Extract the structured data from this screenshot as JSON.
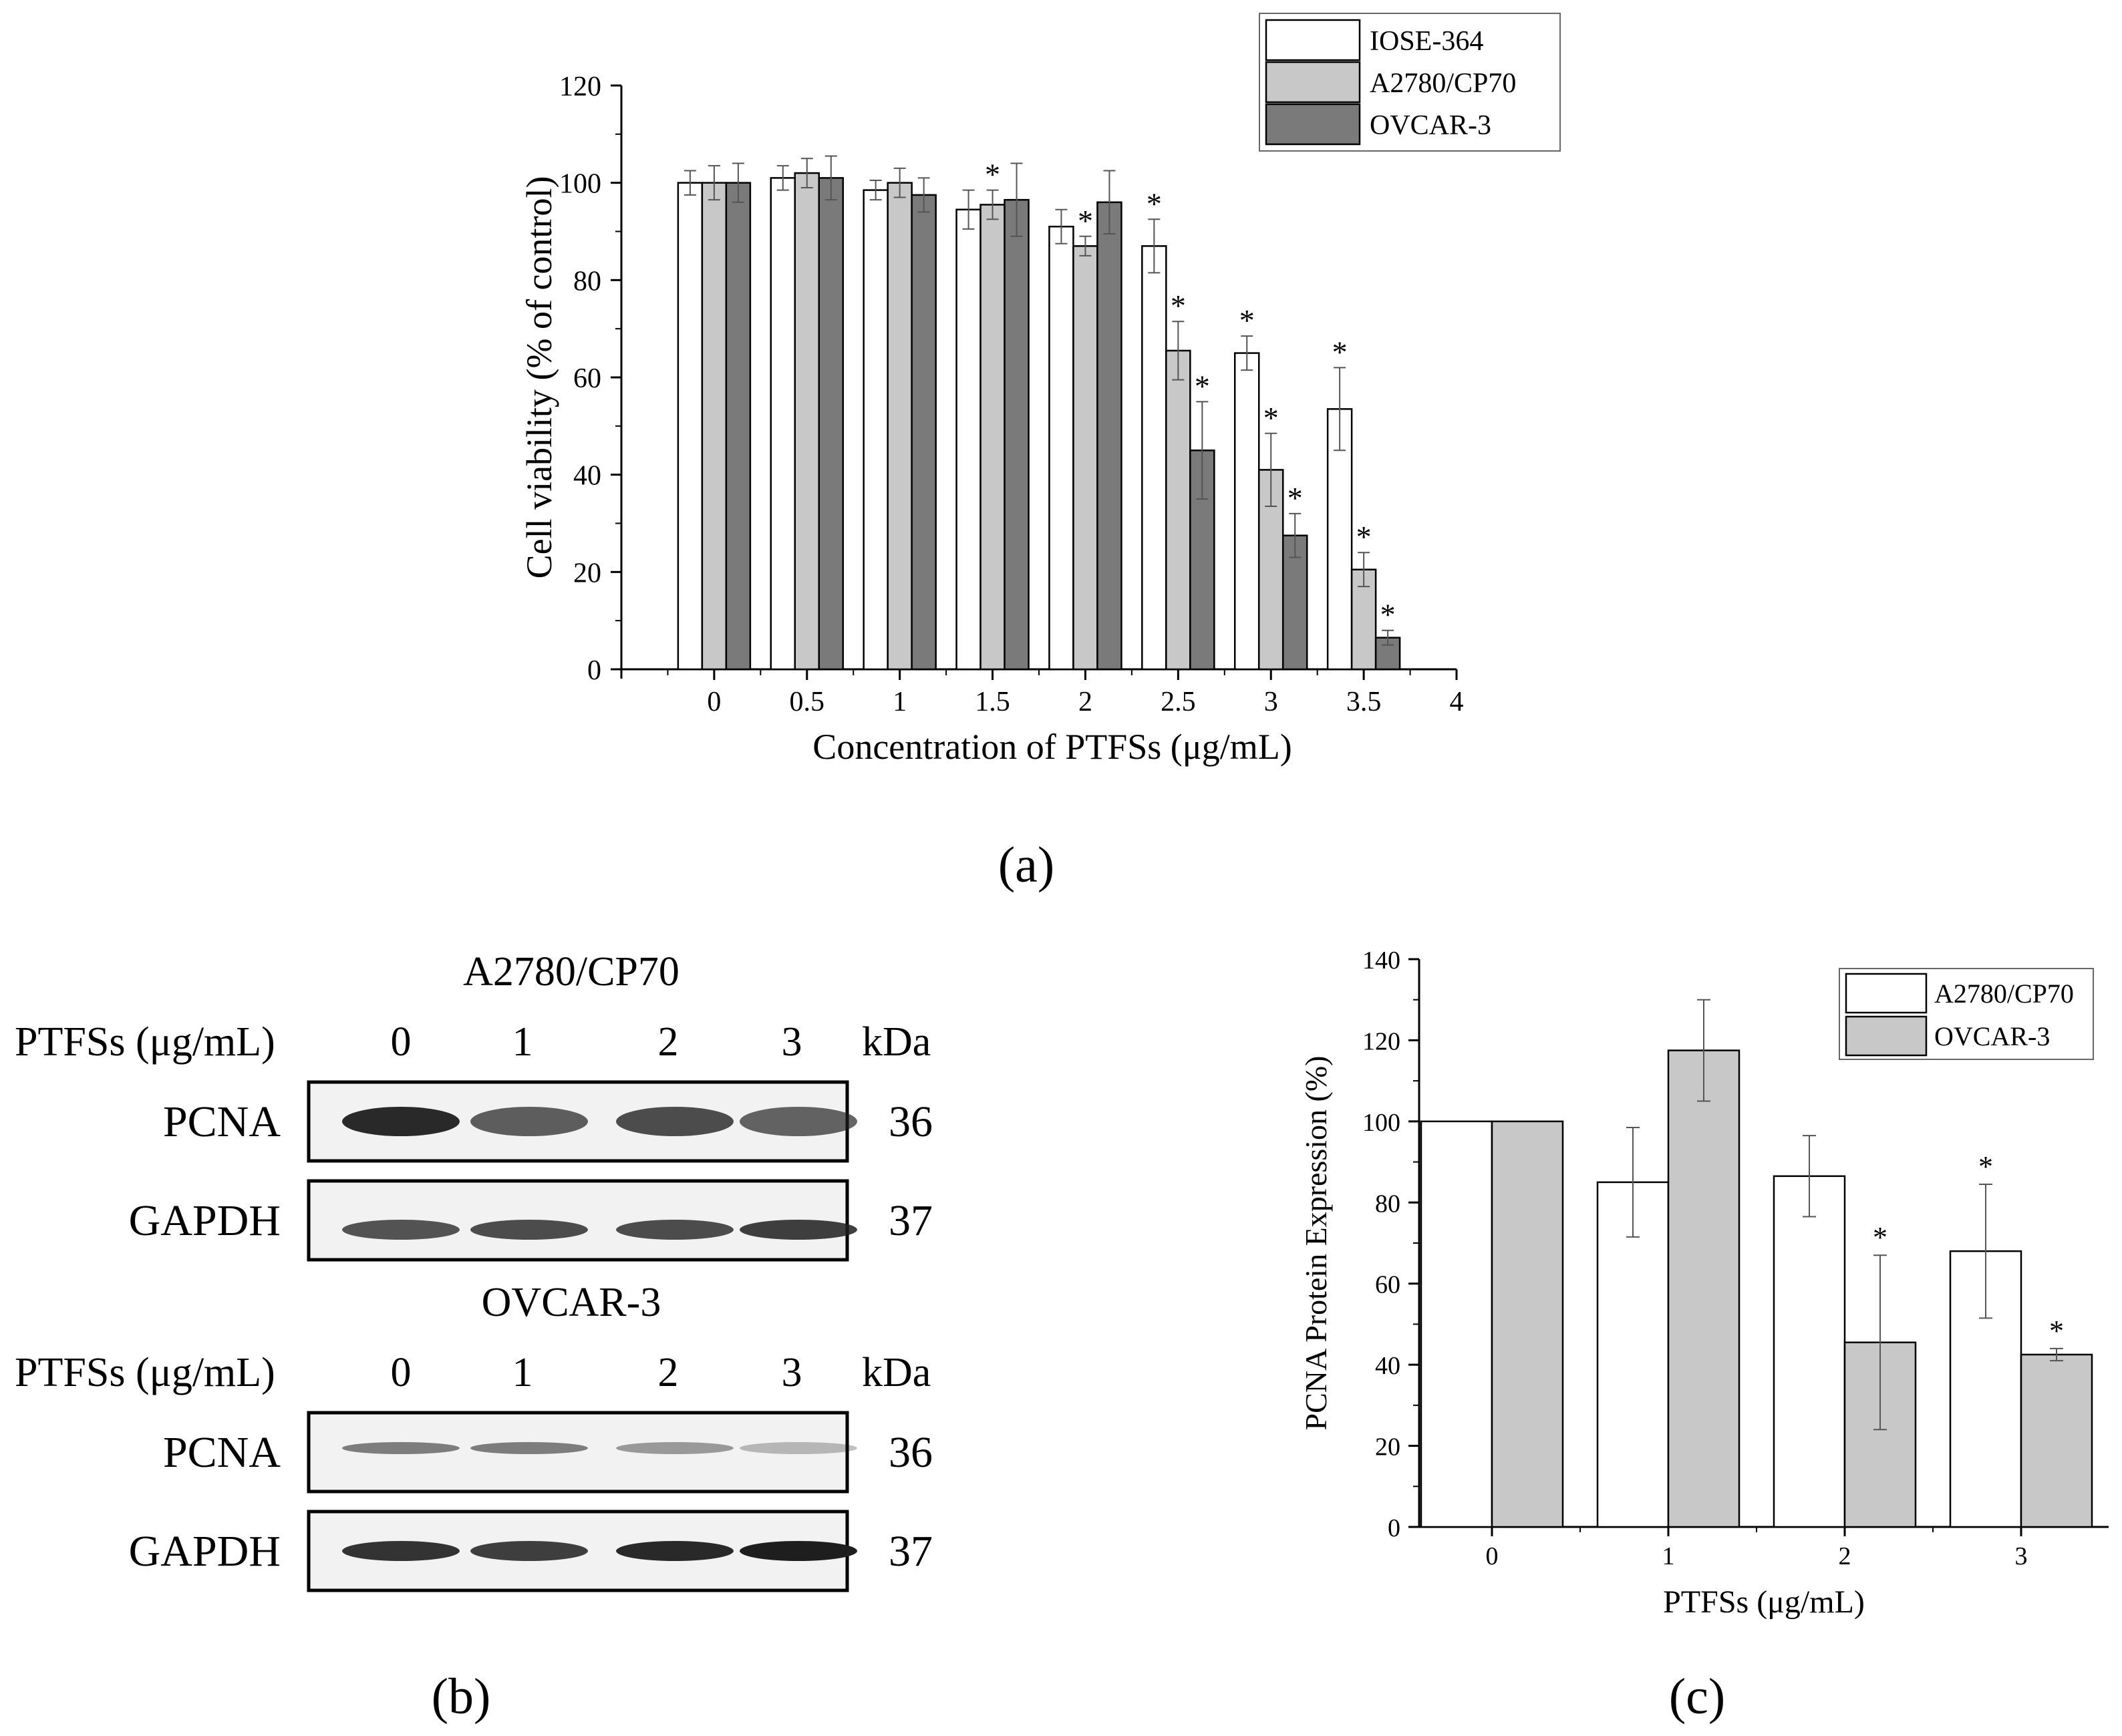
{
  "colors": {
    "iose": "#ffffff",
    "a2780": "#c8c8c8",
    "ovcar": "#7a7a7a",
    "axis": "#000000",
    "band": "#1e1e1e",
    "blot_bg": "#f2f2f2"
  },
  "panel_labels": {
    "a": "(a)",
    "b": "(b)",
    "c": "(c)"
  },
  "chart_data": [
    {
      "id": "a",
      "type": "bar",
      "xlabel": "Concentration of PTFSs (μg/mL)",
      "ylabel": "Cell viability (% of control)",
      "ylim": [
        0,
        120
      ],
      "yticks": [
        0,
        20,
        40,
        60,
        80,
        100,
        120
      ],
      "xlim": [
        -0.5,
        4
      ],
      "xticks": [
        0,
        0.5,
        1,
        1.5,
        2,
        2.5,
        3,
        3.5,
        4
      ],
      "xtick_labels": [
        "0",
        "0.5",
        "1",
        "1.5",
        "2",
        "2.5",
        "3",
        "3.5",
        "4"
      ],
      "categories": [
        0,
        0.5,
        1,
        1.5,
        2,
        2.5,
        3,
        3.5
      ],
      "series": [
        {
          "name": "IOSE-364",
          "color": "#ffffff",
          "values": [
            100,
            101,
            98.5,
            94.5,
            91,
            87,
            65,
            53.5
          ],
          "errors": [
            2.5,
            2.5,
            2,
            4,
            3.5,
            5.5,
            3.5,
            8.5
          ],
          "significant": [
            false,
            false,
            false,
            false,
            false,
            true,
            true,
            true
          ]
        },
        {
          "name": "A2780/CP70",
          "color": "#c8c8c8",
          "values": [
            100,
            102,
            100,
            95.5,
            87,
            65.5,
            41,
            20.5
          ],
          "errors": [
            3.5,
            3,
            3,
            3,
            2,
            6,
            7.5,
            3.5
          ],
          "significant": [
            false,
            false,
            false,
            true,
            true,
            true,
            true,
            true
          ]
        },
        {
          "name": "OVCAR-3",
          "color": "#7a7a7a",
          "values": [
            100,
            101,
            97.5,
            96.5,
            96,
            45,
            27.5,
            6.5
          ],
          "errors": [
            4,
            4.5,
            3.5,
            7.5,
            6.5,
            10,
            4.5,
            1.5
          ],
          "significant": [
            false,
            false,
            false,
            false,
            false,
            true,
            true,
            true
          ]
        }
      ],
      "legend": "top-right",
      "annotation_symbol": "*"
    },
    {
      "id": "c",
      "type": "bar",
      "xlabel": "PTFSs (μg/mL)",
      "ylabel": "PCNA Protein Expression (%)",
      "ylim": [
        0,
        140
      ],
      "yticks": [
        0,
        20,
        40,
        60,
        80,
        100,
        120,
        140
      ],
      "categories": [
        "0",
        "1",
        "2",
        "3"
      ],
      "series": [
        {
          "name": "A2780/CP70",
          "color": "#ffffff",
          "values": [
            100,
            85,
            86.5,
            68
          ],
          "errors": [
            0,
            13.5,
            10,
            16.5
          ],
          "significant": [
            false,
            false,
            false,
            true
          ]
        },
        {
          "name": "OVCAR-3",
          "color": "#c8c8c8",
          "values": [
            100,
            117.5,
            45.5,
            42.5
          ],
          "errors": [
            0,
            12.5,
            21.5,
            1.5
          ],
          "significant": [
            false,
            false,
            true,
            true
          ]
        }
      ],
      "legend": "top-right",
      "annotation_symbol": "*"
    }
  ],
  "blots": {
    "treatment_label": "PTFSs (μg/mL)",
    "doses": [
      "0",
      "1",
      "2",
      "3"
    ],
    "kda_label": "kDa",
    "panels": [
      {
        "cell_line": "A2780/CP70",
        "rows": [
          {
            "protein": "PCNA",
            "kda": "36",
            "intensity": [
              0.95,
              0.7,
              0.78,
              0.68
            ]
          },
          {
            "protein": "GAPDH",
            "kda": "37",
            "intensity": [
              0.75,
              0.78,
              0.78,
              0.85
            ]
          }
        ]
      },
      {
        "cell_line": "OVCAR-3",
        "rows": [
          {
            "protein": "PCNA",
            "kda": "36",
            "intensity": [
              0.55,
              0.55,
              0.42,
              0.28
            ]
          },
          {
            "protein": "GAPDH",
            "kda": "37",
            "intensity": [
              0.9,
              0.85,
              0.95,
              1.0
            ]
          }
        ]
      }
    ]
  }
}
